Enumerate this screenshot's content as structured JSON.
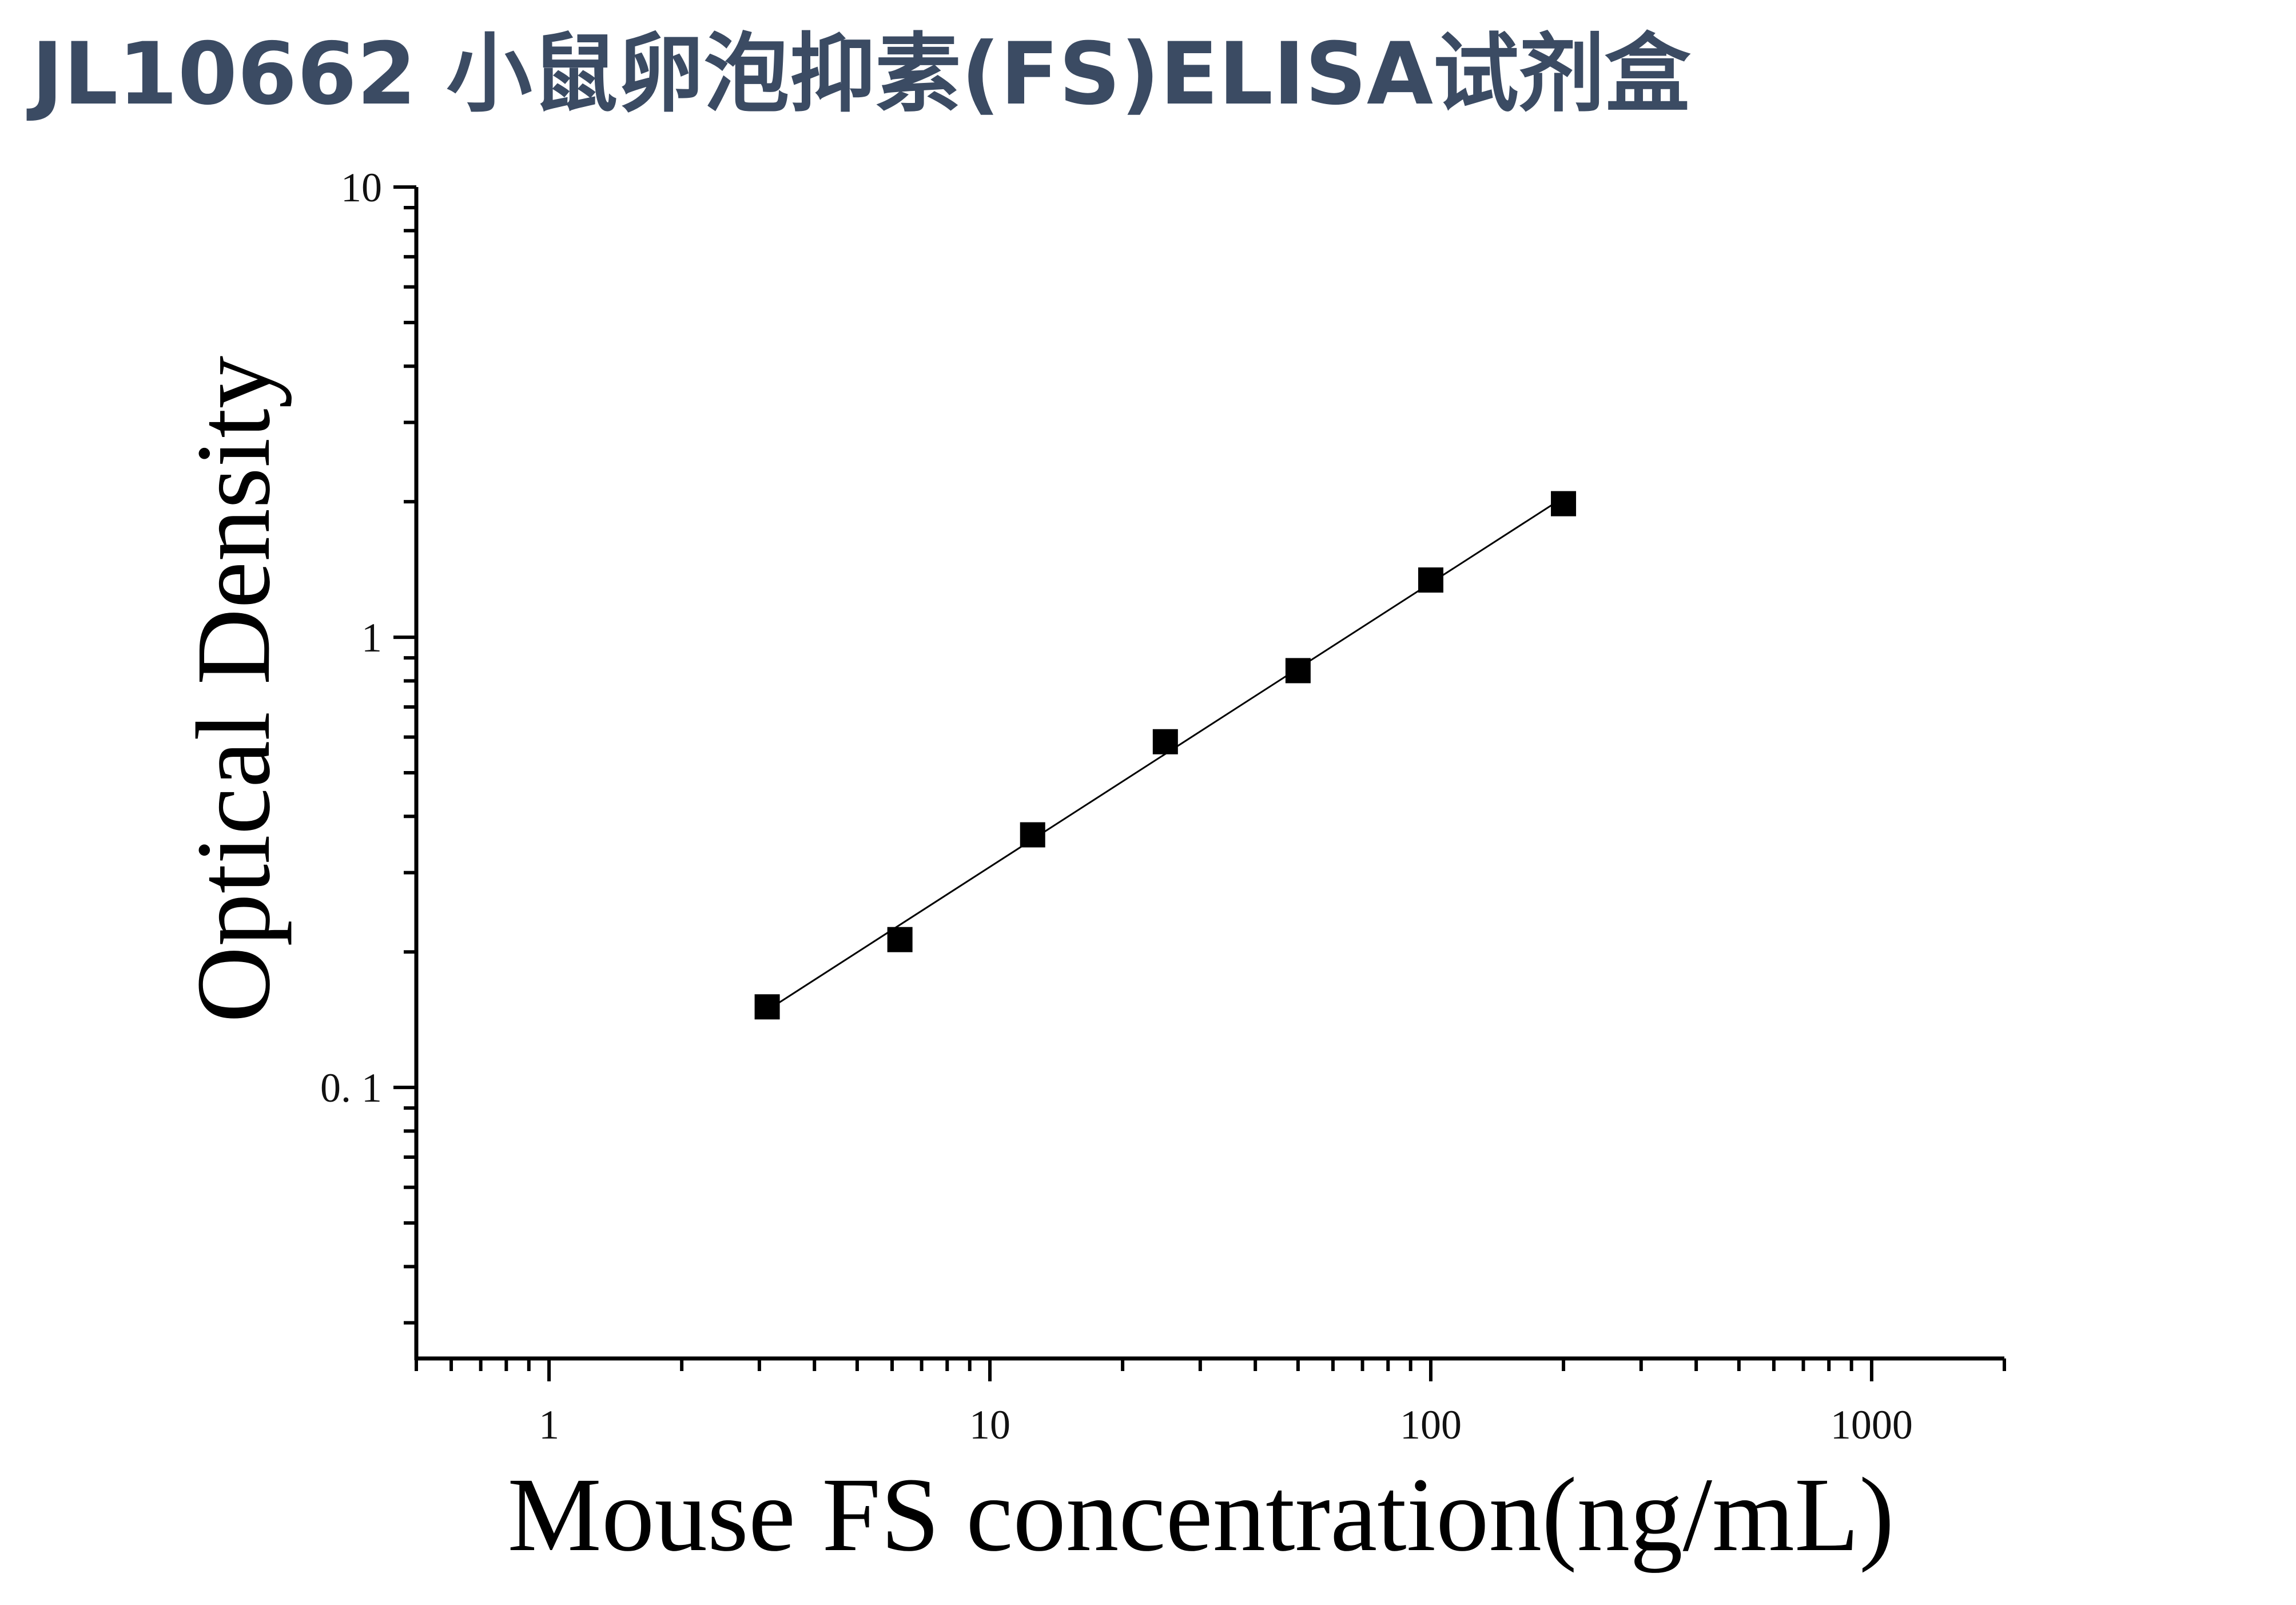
{
  "title": "JL10662 小鼠卵泡抑素(FS)ELISA试剂盒",
  "colors": {
    "title": "#3b4b63",
    "axis": "#000000",
    "marker": "#000000",
    "line": "#000000"
  },
  "chart_data": {
    "type": "scatter",
    "title": "",
    "xlabel": "Mouse FS concentration(ng/mL)",
    "ylabel": "Optical Density",
    "xscale": "log",
    "yscale": "log",
    "xlim": [
      0.5,
      2000
    ],
    "ylim": [
      0.025,
      10
    ],
    "xticks": [
      1,
      10,
      100,
      1000
    ],
    "xtick_labels": [
      "1",
      "10",
      "100",
      "1000"
    ],
    "yticks": [
      0.1,
      1,
      10
    ],
    "ytick_labels": [
      "0. 1",
      "1",
      "10"
    ],
    "grid": false,
    "legend": "none",
    "marker": "square",
    "fit_line": true,
    "series": [
      {
        "x": [
          3.125,
          6.25,
          12.5,
          25,
          50,
          100,
          200
        ],
        "y": [
          0.151,
          0.213,
          0.364,
          0.586,
          0.843,
          1.34,
          1.98
        ]
      }
    ]
  }
}
